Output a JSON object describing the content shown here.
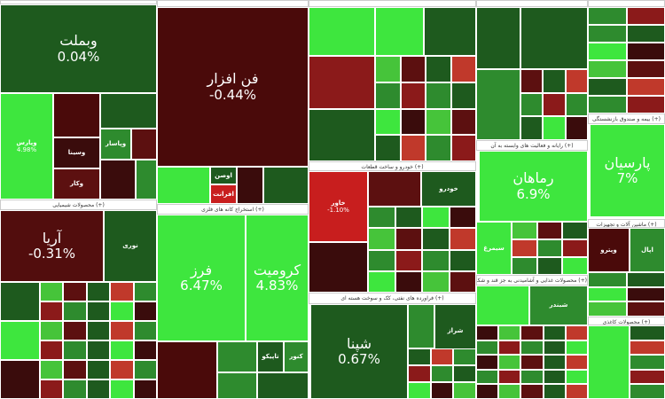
{
  "sections": [
    "(+) محصولات شیمیایی",
    "(+) استخراج کانه های فلزی",
    "(+) خودرو و ساخت قطعات",
    "(+) فراورده های نفتی، کک و سوخت هسته ای",
    "(+) رایانه و فعالیت های وابسته به آن",
    "(+) محصولات غذایی و آشامیدنی به جز قند و شکر",
    "(+) بیمه و صندوق بازنشستگی",
    "(+) ماشین آلات و تجهیزات",
    "(+) محصولات کاغذی"
  ],
  "tiles": [
    {
      "label": "وبملت",
      "change": "0.04%"
    },
    {
      "label": "وپارس",
      "change": "4.98%"
    },
    {
      "label": "وسینا"
    },
    {
      "label": "وپاسار"
    },
    {
      "label": "وکار"
    },
    {
      "label": "آریا",
      "change": "-0.31%"
    },
    {
      "label": "نوری"
    },
    {
      "label": "فن افزار",
      "change": "-0.44%"
    },
    {
      "label": "اوصن"
    },
    {
      "label": "افرانت"
    },
    {
      "label": "فرز",
      "change": "6.47%"
    },
    {
      "label": "کرومیت",
      "change": "4.83%"
    },
    {
      "label": "خاور",
      "change": "-1.10%"
    },
    {
      "label": "شپنا",
      "change": "0.67%"
    },
    {
      "label": "رماهان",
      "change": "6.9%"
    },
    {
      "label": "پارسیان",
      "change": "7%"
    },
    {
      "label": "تاپیکو"
    },
    {
      "label": "کنور"
    },
    {
      "label": "اپال"
    },
    {
      "label": "شراز"
    },
    {
      "label": "شبندر"
    },
    {
      "label": "خودرو"
    },
    {
      "label": "وپترو"
    },
    {
      "label": "سیمرغ"
    }
  ]
}
